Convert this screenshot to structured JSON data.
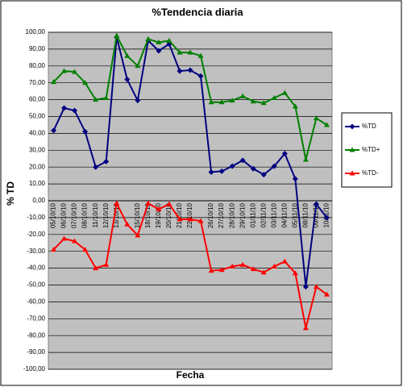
{
  "chart_data": {
    "type": "line",
    "title": "%Tendencia diaria",
    "y_label": "% TD",
    "x_label": "Fecha",
    "categories": [
      "05/10/10",
      "06/10/10",
      "07/10/10",
      "08/10/10",
      "11/10/10",
      "12/10/10",
      "13/10/10",
      null,
      "15/10/10",
      "18/10/10",
      "19/10/10",
      "20/10/10",
      "21/10/10",
      "22/10/10",
      null,
      "26/10/10",
      "27/10/10",
      "28/10/10",
      "29/10/10",
      "01/11/10",
      "02/11/10",
      "03/11/10",
      "04/11/10",
      "05/11/10",
      "08/11/10",
      "09/11/10",
      "10/11/10"
    ],
    "series": [
      {
        "name": "%TD",
        "color": "#000080",
        "marker": "diamond",
        "values": [
          41.67,
          55,
          53.5,
          41,
          20,
          23.26,
          97,
          72,
          59.5,
          95,
          89,
          93,
          77,
          77.5,
          74,
          17,
          17.5,
          20.5,
          24,
          19,
          15.5,
          20.5,
          28,
          13,
          -51,
          -2,
          -10.06
        ]
      },
      {
        "name": "%TD+",
        "color": "#008000",
        "marker": "triangle",
        "values": [
          70.5,
          77,
          76.5,
          70,
          60,
          61,
          98,
          86,
          80,
          96,
          94,
          95,
          88,
          88,
          86,
          58.5,
          58.5,
          59.5,
          62,
          59,
          58,
          61,
          64,
          56,
          24.4,
          49,
          44.98
        ]
      },
      {
        "name": "%TD-",
        "color": "#ff0000",
        "marker": "triangle",
        "values": [
          -29,
          -22.5,
          -24,
          -29,
          -40,
          -38,
          -1.5,
          -14,
          -20.5,
          -1.5,
          -5,
          -2,
          -11,
          -11,
          -12,
          -41.5,
          -41,
          -39,
          -38,
          -40.5,
          -42.5,
          -39,
          -36,
          -43,
          -75.56,
          -51,
          -55.62
        ]
      }
    ],
    "ylim": [
      -100,
      100
    ],
    "yticks": [
      {
        "value": -100,
        "label": "-100,00"
      },
      {
        "value": -90,
        "label": "-90,00"
      },
      {
        "value": -80,
        "label": "-80,00"
      },
      {
        "value": -70,
        "label": "-70,00"
      },
      {
        "value": -60,
        "label": "-60,00"
      },
      {
        "value": -50,
        "label": "-50,00"
      },
      {
        "value": -40,
        "label": "-40,00"
      },
      {
        "value": -30,
        "label": "-30,00"
      },
      {
        "value": -20,
        "label": "-20,00"
      },
      {
        "value": -10,
        "label": "-10,00"
      },
      {
        "value": 0,
        "label": "0,00"
      },
      {
        "value": 10,
        "label": "10,00"
      },
      {
        "value": 20,
        "label": "20,00"
      },
      {
        "value": 30,
        "label": "30,00"
      },
      {
        "value": 40,
        "label": "40,00"
      },
      {
        "value": 50,
        "label": "50,00"
      },
      {
        "value": 60,
        "label": "60,00"
      },
      {
        "value": 70,
        "label": "70,00"
      },
      {
        "value": 80,
        "label": "80,00"
      },
      {
        "value": 90,
        "label": "90,00"
      },
      {
        "value": 100,
        "label": "100,00"
      }
    ],
    "grid": true,
    "plot_color": "#c0c0c0"
  }
}
